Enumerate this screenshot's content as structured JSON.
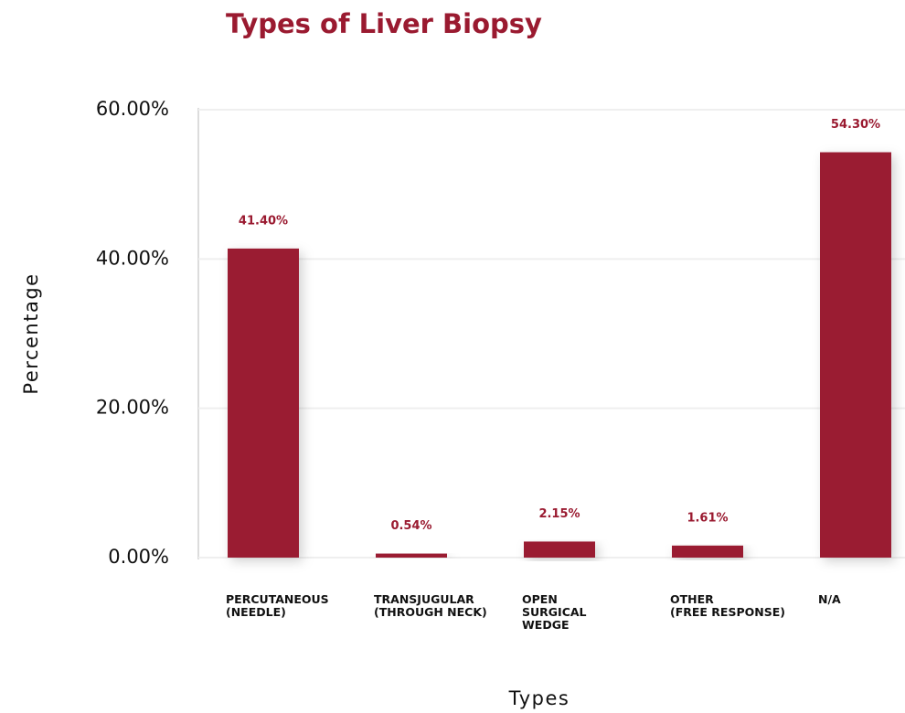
{
  "chart_data": {
    "type": "bar",
    "title": "Types of Liver Biopsy",
    "x_label": "Types",
    "y_label": "Percentage",
    "categories": [
      "PERCUTANEOUS\n(NEEDLE)",
      "TRANSJUGULAR\n(THROUGH NECK)",
      "OPEN\nSURGICAL\nWEDGE",
      "OTHER\n(FREE RESPONSE)",
      "N/A"
    ],
    "values": [
      41.4,
      0.54,
      2.15,
      1.61,
      54.3
    ],
    "value_labels": [
      "41.40%",
      "0.54%",
      "2.15%",
      "1.61%",
      "54.30%"
    ],
    "color": "#9a1a30",
    "ylim": [
      0,
      60
    ],
    "yticks": [
      {
        "value": 0,
        "label": "0.00%"
      },
      {
        "value": 20,
        "label": "20.00%"
      },
      {
        "value": 40,
        "label": "40.00%"
      },
      {
        "value": 60,
        "label": "60.00%"
      }
    ],
    "grid": true
  }
}
